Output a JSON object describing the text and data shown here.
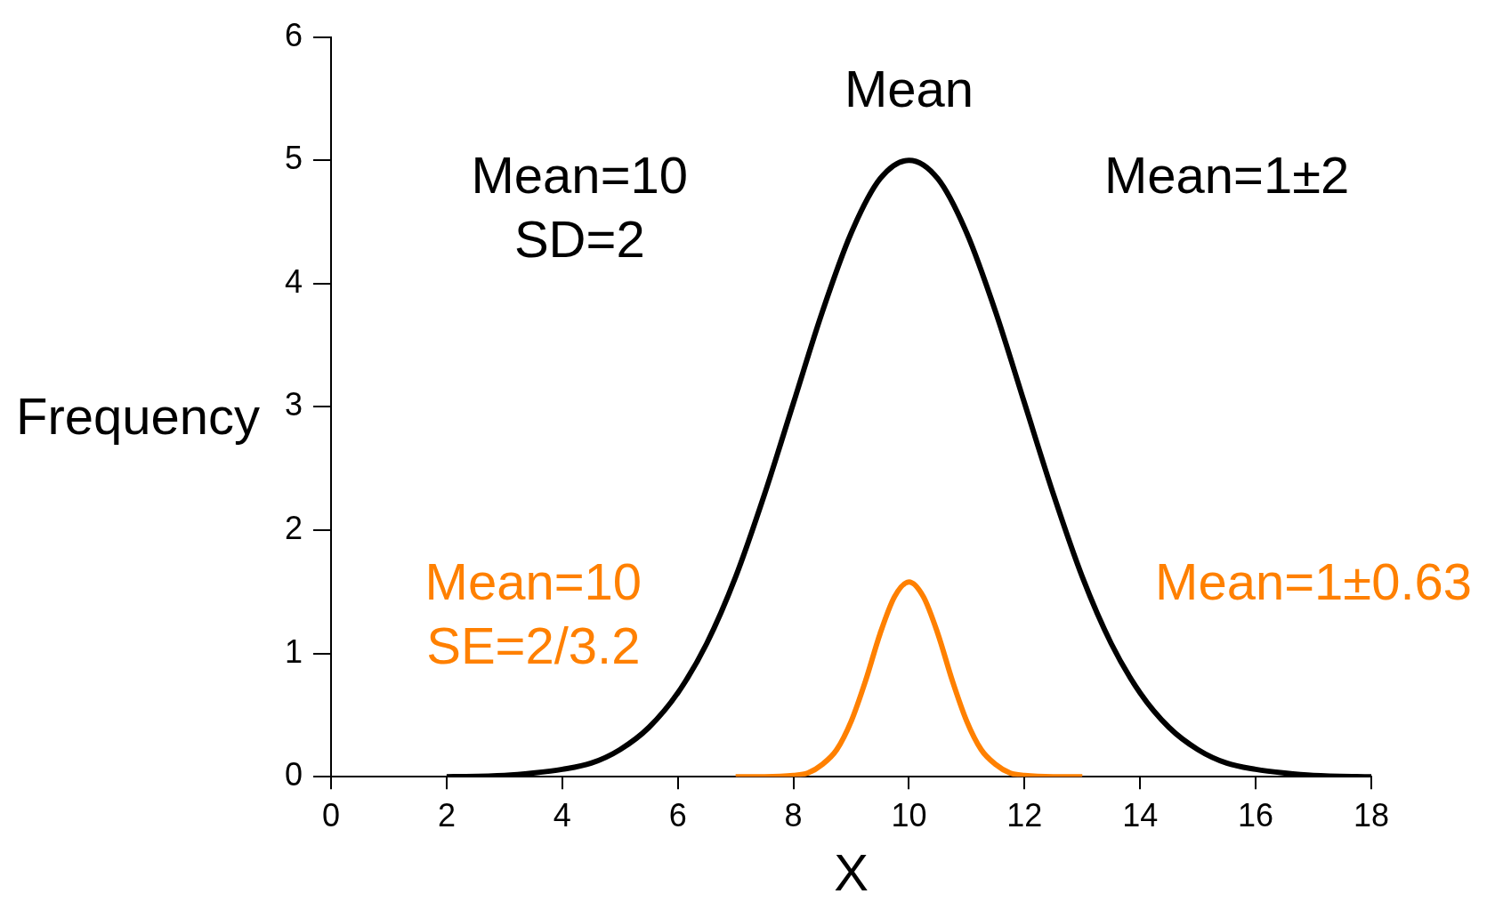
{
  "chart_data": {
    "type": "line",
    "xlabel": "X",
    "ylabel": "Frequency",
    "xlim": [
      0,
      18
    ],
    "xticks": [
      0,
      2,
      4,
      6,
      8,
      10,
      12,
      14,
      16,
      18
    ],
    "ylim": [
      0,
      6
    ],
    "yticks": [
      0,
      1,
      2,
      3,
      4,
      5,
      6
    ],
    "grid": false,
    "legend": false,
    "marker": "none",
    "line_style": "solid",
    "annotations": [
      "Mean",
      "Mean=10\nSD=2",
      "Mean=1±2",
      "Mean=10\nSE=2/3.2",
      "Mean=1±0.63"
    ],
    "series": [
      {
        "color": "#000000",
        "x": [
          2,
          3,
          3.5,
          4,
          4.5,
          5,
          5.5,
          6,
          6.5,
          7,
          7.5,
          8,
          8.5,
          9,
          9.5,
          10,
          10.5,
          11,
          11.5,
          12,
          12.5,
          13,
          13.5,
          14,
          14.5,
          15,
          15.5,
          16,
          16.5,
          17,
          18
        ],
        "values": [
          0,
          0.01,
          0.03,
          0.06,
          0.11,
          0.22,
          0.4,
          0.68,
          1.08,
          1.62,
          2.29,
          3.03,
          3.77,
          4.41,
          4.85,
          5,
          4.85,
          4.41,
          3.77,
          3.03,
          2.29,
          1.62,
          1.08,
          0.68,
          0.4,
          0.22,
          0.11,
          0.06,
          0.03,
          0.01,
          0
        ]
      },
      {
        "color": "#ff8000",
        "x": [
          7,
          7.5,
          8,
          8.25,
          8.5,
          8.75,
          9,
          9.25,
          9.5,
          9.75,
          10,
          10.25,
          10.5,
          10.75,
          11,
          11.25,
          11.5,
          11.75,
          12,
          12.5,
          13
        ],
        "values": [
          0,
          0,
          0.01,
          0.03,
          0.1,
          0.22,
          0.45,
          0.78,
          1.16,
          1.46,
          1.58,
          1.46,
          1.16,
          0.78,
          0.45,
          0.22,
          0.1,
          0.03,
          0.01,
          0,
          0
        ]
      }
    ]
  }
}
